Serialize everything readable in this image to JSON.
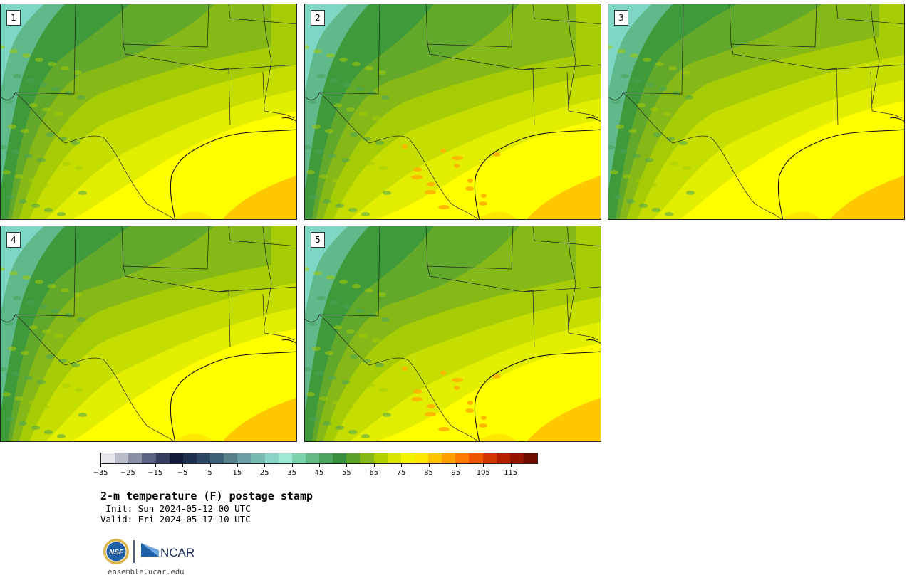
{
  "panels": [
    {
      "label": "1"
    },
    {
      "label": "2"
    },
    {
      "label": "3"
    },
    {
      "label": "4"
    },
    {
      "label": "5"
    }
  ],
  "colorbar": {
    "colors": [
      "#e6e8ee",
      "#b9bccb",
      "#8a8fa5",
      "#5d6482",
      "#343d5e",
      "#101b37",
      "#1d2d4c",
      "#2c4661",
      "#3d6075",
      "#56808a",
      "#6a9ea2",
      "#78b9b4",
      "#8bd3c6",
      "#9ee8d6",
      "#7cd1ad",
      "#64b987",
      "#4ea363",
      "#3a8f3e",
      "#5aa12a",
      "#86b817",
      "#b2d000",
      "#d9e600",
      "#f3f300",
      "#ffe800",
      "#ffc400",
      "#ffa000",
      "#ff7b00",
      "#ef5500",
      "#d23600",
      "#b51f00",
      "#941300",
      "#6d0d00"
    ],
    "tick_labels": [
      "−35",
      "−25",
      "−15",
      "−5",
      "5",
      "15",
      "25",
      "35",
      "45",
      "55",
      "65",
      "75",
      "85",
      "95",
      "105",
      "115"
    ]
  },
  "title": "2-m temperature (F) postage stamp",
  "init": " Init: Sun 2024-05-12 00 UTC",
  "valid": "Valid: Fri 2024-05-17 10 UTC",
  "logos": {
    "nsf": "NSF",
    "ncar": "NCAR"
  },
  "url": "ensemble.ucar.edu"
}
